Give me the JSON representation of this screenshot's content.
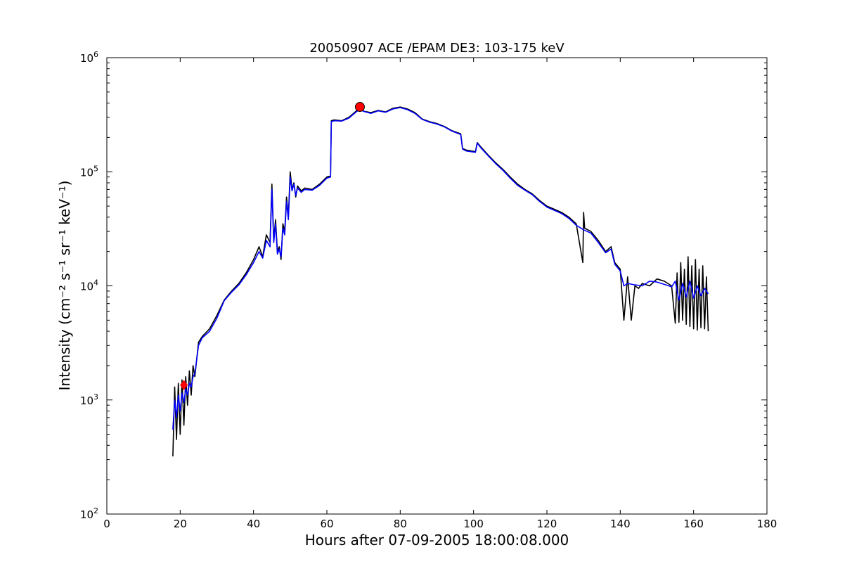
{
  "chart_data": {
    "type": "line",
    "title": "20050907 ACE /EPAM DE3: 103-175 keV",
    "xlabel": "Hours after 07-09-2005 18:00:08.000",
    "ylabel": "Intensity (cm⁻² s⁻¹ sr⁻¹ keV⁻¹)",
    "x_range": [
      0,
      180
    ],
    "y_range": [
      100,
      1000000
    ],
    "y_scale": "log",
    "grid": false,
    "x_ticks": [
      0,
      20,
      40,
      60,
      80,
      100,
      120,
      140,
      160,
      180
    ],
    "x_tick_labels": [
      "0",
      "20",
      "40",
      "60",
      "80",
      "100",
      "120",
      "140",
      "160",
      "180"
    ],
    "y_ticks": [
      100,
      1000,
      10000,
      100000,
      1000000
    ],
    "y_tick_labels": [
      {
        "base": "10",
        "exp": "2"
      },
      {
        "base": "10",
        "exp": "3"
      },
      {
        "base": "10",
        "exp": "4"
      },
      {
        "base": "10",
        "exp": "5"
      },
      {
        "base": "10",
        "exp": "6"
      }
    ],
    "series": [
      {
        "color": "#000000",
        "x": [
          18.0,
          18.5,
          19.0,
          19.5,
          20.0,
          20.5,
          21.0,
          21.5,
          22.0,
          22.5,
          23.0,
          23.5,
          24.0,
          25.0,
          26.0,
          28.0,
          30.0,
          32.0,
          34.0,
          36.0,
          38.0,
          40.0,
          41.5,
          42.5,
          43.5,
          44.5,
          45.0,
          45.5,
          46.0,
          46.5,
          47.0,
          47.5,
          48.0,
          48.5,
          49.0,
          49.5,
          50.0,
          50.5,
          51.0,
          51.5,
          52.0,
          53.0,
          54.0,
          56.0,
          58.0,
          60.0,
          61.0,
          61.2,
          62.0,
          64.0,
          66.0,
          68.0,
          69.0,
          70.0,
          72.0,
          74.0,
          76.0,
          78.0,
          80.0,
          82.0,
          84.0,
          86.0,
          88.0,
          90.0,
          92.0,
          94.0,
          96.5,
          97.0,
          98.0,
          100.5,
          101.0,
          102.0,
          104.0,
          106.0,
          108.0,
          110.0,
          112.0,
          114.0,
          116.0,
          118.0,
          120.0,
          122.0,
          124.0,
          126.0,
          128.0,
          129.8,
          130.0,
          130.3,
          132.0,
          134.0,
          136.0,
          137.5,
          138.5,
          140.0,
          141.0,
          141.8,
          142.0,
          143.0,
          144.0,
          145.0,
          146.0,
          148.0,
          150.0,
          152.0,
          154.0,
          155.0,
          155.5,
          156.0,
          156.5,
          157.0,
          157.5,
          158.0,
          158.5,
          159.0,
          159.5,
          160.0,
          160.5,
          161.0,
          161.5,
          162.0,
          162.5,
          163.0,
          163.5,
          164.0
        ],
        "y": [
          320,
          1300,
          450,
          1400,
          500,
          1500,
          600,
          1600,
          900,
          1800,
          1100,
          2000,
          1600,
          3200,
          3600,
          4200,
          5500,
          7500,
          9000,
          10500,
          13000,
          17000,
          22000,
          18000,
          28000,
          24000,
          78000,
          25000,
          38000,
          20000,
          22000,
          17000,
          35000,
          30000,
          60000,
          40000,
          100000,
          70000,
          80000,
          60000,
          75000,
          68000,
          72000,
          70000,
          78000,
          90000,
          92000,
          280000,
          285000,
          280000,
          300000,
          340000,
          360000,
          340000,
          330000,
          345000,
          335000,
          360000,
          370000,
          355000,
          330000,
          290000,
          275000,
          265000,
          250000,
          230000,
          215000,
          160000,
          155000,
          150000,
          180000,
          165000,
          140000,
          120000,
          105000,
          90000,
          78000,
          70000,
          64000,
          56000,
          50000,
          47000,
          44000,
          40000,
          35000,
          16000,
          44000,
          32000,
          30000,
          25000,
          20000,
          22000,
          16000,
          14000,
          5000,
          10000,
          12000,
          5000,
          10000,
          9500,
          10500,
          10000,
          11500,
          11000,
          10000,
          4700,
          13000,
          4800,
          16000,
          5000,
          14000,
          4600,
          18000,
          4400,
          15000,
          4200,
          17000,
          4100,
          14000,
          4300,
          15000,
          4200,
          12000,
          4000
        ]
      },
      {
        "color": "#0000ff",
        "x": [
          18.0,
          18.5,
          19.0,
          19.5,
          20.0,
          20.5,
          21.0,
          21.5,
          22.0,
          22.5,
          23.0,
          23.5,
          24.0,
          25.0,
          26.0,
          28.0,
          30.0,
          32.0,
          34.0,
          36.0,
          38.0,
          40.0,
          41.5,
          42.5,
          43.5,
          44.5,
          45.0,
          45.5,
          46.0,
          46.5,
          47.0,
          47.5,
          48.0,
          48.5,
          49.0,
          49.5,
          50.0,
          50.5,
          51.0,
          51.5,
          52.0,
          53.0,
          54.0,
          56.0,
          58.0,
          60.0,
          61.0,
          61.2,
          62.0,
          64.0,
          66.0,
          68.0,
          69.0,
          70.0,
          72.0,
          74.0,
          76.0,
          78.0,
          80.0,
          82.0,
          84.0,
          86.0,
          88.0,
          90.0,
          92.0,
          94.0,
          96.5,
          97.0,
          98.0,
          100.5,
          101.0,
          102.0,
          104.0,
          106.0,
          108.0,
          110.0,
          112.0,
          114.0,
          116.0,
          118.0,
          120.0,
          122.0,
          124.0,
          126.0,
          128.0,
          130.0,
          132.0,
          134.0,
          136.0,
          137.5,
          138.5,
          140.0,
          141.0,
          142.0,
          144.0,
          146.0,
          148.0,
          150.0,
          152.0,
          154.0,
          155.0,
          156.0,
          157.0,
          158.0,
          159.0,
          160.0,
          161.0,
          162.0,
          163.0,
          164.0
        ],
        "y": [
          550,
          1000,
          700,
          1100,
          800,
          1150,
          950,
          1250,
          1100,
          1400,
          1300,
          1600,
          1700,
          3000,
          3500,
          4000,
          5200,
          7400,
          8800,
          10200,
          12500,
          16000,
          20000,
          17500,
          25000,
          22000,
          70000,
          24000,
          35000,
          19000,
          21000,
          18000,
          32000,
          28000,
          55000,
          38000,
          90000,
          68000,
          78000,
          62000,
          72000,
          66000,
          70000,
          69000,
          76000,
          88000,
          90000,
          275000,
          280000,
          278000,
          295000,
          335000,
          355000,
          338000,
          325000,
          342000,
          332000,
          355000,
          365000,
          350000,
          325000,
          288000,
          272000,
          262000,
          248000,
          228000,
          212000,
          158000,
          152000,
          148000,
          178000,
          162000,
          138000,
          118000,
          103000,
          88000,
          76000,
          69000,
          63000,
          55000,
          49000,
          46000,
          43000,
          39000,
          34000,
          31000,
          29000,
          24000,
          19500,
          21000,
          15500,
          13500,
          10000,
          10500,
          10200,
          10000,
          11000,
          10800,
          10300,
          9800,
          11000,
          7500,
          10500,
          8000,
          11000,
          7800,
          10000,
          8200,
          9500,
          8500
        ]
      }
    ],
    "markers": [
      {
        "shape": "circle",
        "color": "#ff0000",
        "x": 69.0,
        "y": 370000
      },
      {
        "shape": "diamond",
        "color": "#ff0000",
        "x": 21.0,
        "y": 1350
      }
    ]
  }
}
